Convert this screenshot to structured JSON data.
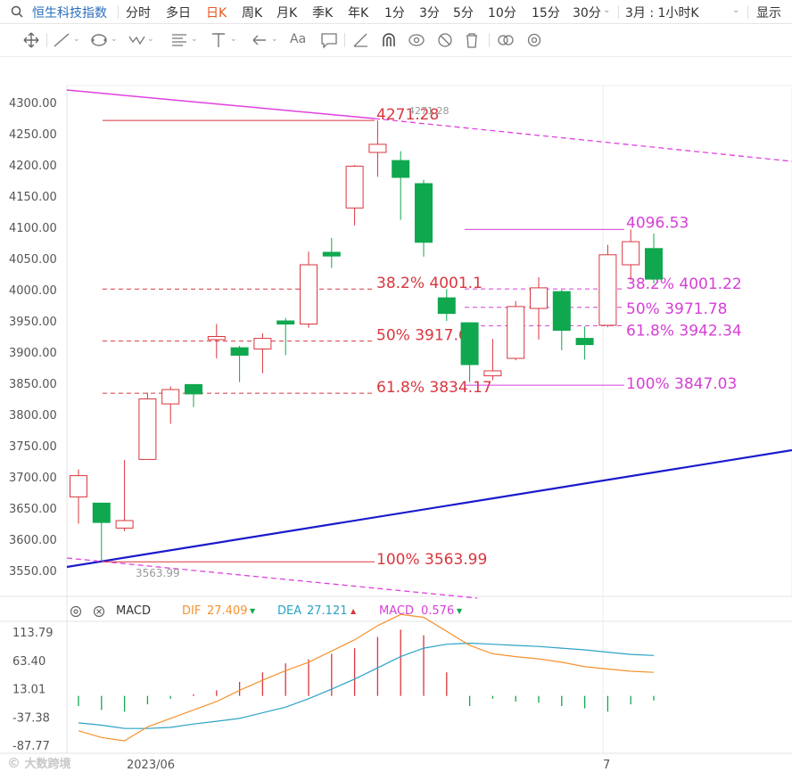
{
  "topbar": {
    "index_name": "恒生科技指数",
    "periods": [
      "分时",
      "多日",
      "日K",
      "周K",
      "月K",
      "季K",
      "年K",
      "1分",
      "3分",
      "5分",
      "10分",
      "15分",
      "30分"
    ],
    "active_period": "日K",
    "range_label": "3月 : 1小时K",
    "display_label": "显示"
  },
  "toolbar": {
    "icons": [
      "move-icon",
      "line-tool-icon",
      "shape-tool-icon",
      "wave-tool-icon",
      "fib-tool-icon",
      "vertical-tool-icon",
      "arrow-tool-icon",
      "text-tool-icon",
      "comment-tool-icon",
      "ruler-icon",
      "magnet-icon",
      "eye-icon",
      "hide-icon",
      "trash-icon",
      "link-icon",
      "settings-icon"
    ]
  },
  "macd_panel": {
    "indicator": "MACD",
    "dif_label": "DIF",
    "dif_value": "27.409",
    "dea_label": "DEA",
    "dea_value": "27.121",
    "macd_label": "MACD",
    "macd_value": "0.576",
    "colors": {
      "dif": "#f5922f",
      "dea": "#2aa3c6",
      "macd": "#d63fd6"
    }
  },
  "watermark": "大数跨境",
  "chart_data": {
    "type": "candlestick",
    "price_axis": {
      "ylim": [
        3510,
        4330
      ],
      "ticks": [
        "4300.00",
        "4250.00",
        "4200.00",
        "4150.00",
        "4100.00",
        "4050.00",
        "4000.00",
        "3950.00",
        "3900.00",
        "3850.00",
        "3800.00",
        "3750.00",
        "3700.00",
        "3650.00",
        "3600.00",
        "3550.00"
      ]
    },
    "x_labels": [
      "2023/06",
      "7"
    ],
    "colors": {
      "up": "#d9363e",
      "down": "#0fa84f",
      "trend": "#1a1acc",
      "channel": "#e040e0",
      "fib_left": "#d9363e",
      "fib_right": "#d63fd6"
    },
    "candles": [
      {
        "o": 3668,
        "h": 3712,
        "l": 3625,
        "c": 3702
      },
      {
        "o": 3658,
        "h": 3658,
        "l": 3563.99,
        "c": 3627
      },
      {
        "o": 3618,
        "h": 3727,
        "l": 3613,
        "c": 3630
      },
      {
        "o": 3728,
        "h": 3835,
        "l": 3728,
        "c": 3825
      },
      {
        "o": 3817,
        "h": 3845,
        "l": 3785,
        "c": 3840
      },
      {
        "o": 3848,
        "h": 3848,
        "l": 3812,
        "c": 3833
      },
      {
        "o": 3920,
        "h": 3945,
        "l": 3890,
        "c": 3925
      },
      {
        "o": 3907,
        "h": 3910,
        "l": 3852,
        "c": 3895
      },
      {
        "o": 3905,
        "h": 3930,
        "l": 3866,
        "c": 3922
      },
      {
        "o": 3950,
        "h": 3955,
        "l": 3895,
        "c": 3945
      },
      {
        "o": 3945,
        "h": 4061,
        "l": 3939,
        "c": 4040
      },
      {
        "o": 4060,
        "h": 4083,
        "l": 4035,
        "c": 4054
      },
      {
        "o": 4131,
        "h": 4200,
        "l": 4103,
        "c": 4198
      },
      {
        "o": 4220,
        "h": 4271.28,
        "l": 4181,
        "c": 4233
      },
      {
        "o": 4207,
        "h": 4222,
        "l": 4112,
        "c": 4180
      },
      {
        "o": 4170,
        "h": 4176,
        "l": 4053,
        "c": 4076
      },
      {
        "o": 3987,
        "h": 4001,
        "l": 3950,
        "c": 3962
      },
      {
        "o": 3947,
        "h": 3948,
        "l": 3852,
        "c": 3880
      },
      {
        "o": 3862,
        "h": 3921,
        "l": 3855,
        "c": 3870
      },
      {
        "o": 3890,
        "h": 3982,
        "l": 3887,
        "c": 3973
      },
      {
        "o": 3970,
        "h": 4020,
        "l": 3920,
        "c": 4003
      },
      {
        "o": 3997,
        "h": 4000,
        "l": 3903,
        "c": 3935
      },
      {
        "o": 3922,
        "h": 3941,
        "l": 3888,
        "c": 3912
      },
      {
        "o": 3943,
        "h": 4072,
        "l": 3940,
        "c": 4056
      },
      {
        "o": 4040,
        "h": 4096.53,
        "l": 4015,
        "c": 4077
      },
      {
        "o": 4066,
        "h": 4090,
        "l": 4010,
        "c": 4017
      }
    ],
    "high_label": "4271.28",
    "high_label_small": "4271.28",
    "low_label_small": "3563.99",
    "fib_left": [
      {
        "label": "4271.28",
        "price": 4271.28
      },
      {
        "label": "38.2% 4001.1",
        "price": 4001.1
      },
      {
        "label": "50% 3917.63",
        "price": 3917.63
      },
      {
        "label": "61.8% 3834.17",
        "price": 3834.17
      },
      {
        "label": "100% 3563.99",
        "price": 3563.99
      }
    ],
    "fib_right": [
      {
        "label": "4096.53",
        "price": 4096.53
      },
      {
        "label": "38.2% 4001.22",
        "price": 4001.22
      },
      {
        "label": "50% 3971.78",
        "price": 3971.78
      },
      {
        "label": "61.8% 3942.34",
        "price": 3942.34
      },
      {
        "label": "100% 3847.03",
        "price": 3847.03
      }
    ],
    "macd_axis": {
      "ylim": [
        -105,
        125
      ],
      "ticks": [
        "113.79",
        "63.40",
        "13.01",
        "-37.38",
        "-87.77"
      ]
    },
    "macd_hist": [
      -18,
      -25,
      -28,
      -15,
      -5,
      3,
      10,
      25,
      42,
      58,
      65,
      75,
      85,
      105,
      118,
      108,
      42,
      -18,
      -5,
      -10,
      -12,
      -18,
      -22,
      -28,
      -15,
      -8
    ],
    "dif": [
      -62,
      -74,
      -80,
      -55,
      -40,
      -25,
      -10,
      10,
      28,
      45,
      60,
      80,
      100,
      125,
      145,
      140,
      115,
      90,
      75,
      70,
      66,
      60,
      52,
      48,
      44,
      42
    ],
    "dea": [
      -48,
      -52,
      -58,
      -58,
      -56,
      -50,
      -45,
      -40,
      -30,
      -20,
      -5,
      12,
      30,
      50,
      70,
      85,
      92,
      94,
      92,
      90,
      88,
      85,
      82,
      78,
      74,
      72
    ]
  }
}
